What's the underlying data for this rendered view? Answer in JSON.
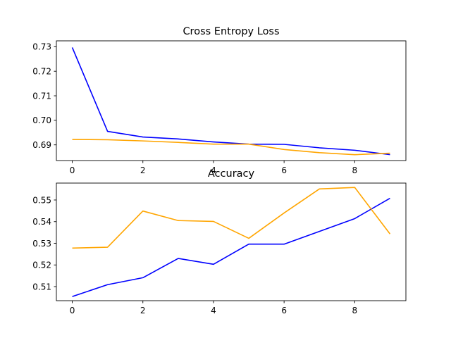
{
  "chart_data": [
    {
      "type": "line",
      "title": "Cross Entropy Loss",
      "xlabel": "",
      "ylabel": "",
      "xlim": [
        -0.45,
        9.45
      ],
      "ylim": [
        0.6836,
        0.7324
      ],
      "xticks": [
        0,
        2,
        4,
        6,
        8
      ],
      "yticks": [
        0.69,
        0.7,
        0.71,
        0.72,
        0.73
      ],
      "ytick_labels": [
        "0.69",
        "0.70",
        "0.71",
        "0.72",
        "0.73"
      ],
      "grid": false,
      "x": [
        0,
        1,
        2,
        3,
        4,
        5,
        6,
        7,
        8,
        9
      ],
      "series": [
        {
          "color": "#0000ff",
          "values": [
            0.7297,
            0.6955,
            0.6932,
            0.6924,
            0.6912,
            0.6903,
            0.6902,
            0.6888,
            0.6878,
            0.686
          ]
        },
        {
          "color": "#ffa500",
          "values": [
            0.6922,
            0.6921,
            0.6916,
            0.691,
            0.6903,
            0.6903,
            0.6881,
            0.6868,
            0.686,
            0.6866
          ]
        }
      ]
    },
    {
      "type": "line",
      "title": "Accuracy",
      "xlabel": "",
      "ylabel": "",
      "xlim": [
        -0.45,
        9.45
      ],
      "ylim": [
        0.5035,
        0.5578
      ],
      "xticks": [
        0,
        2,
        4,
        6,
        8
      ],
      "yticks": [
        0.51,
        0.52,
        0.53,
        0.54,
        0.55
      ],
      "ytick_labels": [
        "0.51",
        "0.52",
        "0.53",
        "0.54",
        "0.55"
      ],
      "grid": false,
      "x": [
        0,
        1,
        2,
        3,
        4,
        5,
        6,
        7,
        8,
        9
      ],
      "series": [
        {
          "color": "#0000ff",
          "values": [
            0.5054,
            0.5109,
            0.5141,
            0.523,
            0.5203,
            0.5296,
            0.5296,
            0.5355,
            0.5414,
            0.5508
          ]
        },
        {
          "color": "#ffa500",
          "values": [
            0.5278,
            0.5282,
            0.5449,
            0.5405,
            0.5401,
            0.5323,
            0.544,
            0.5551,
            0.5558,
            0.5343
          ]
        }
      ]
    }
  ]
}
